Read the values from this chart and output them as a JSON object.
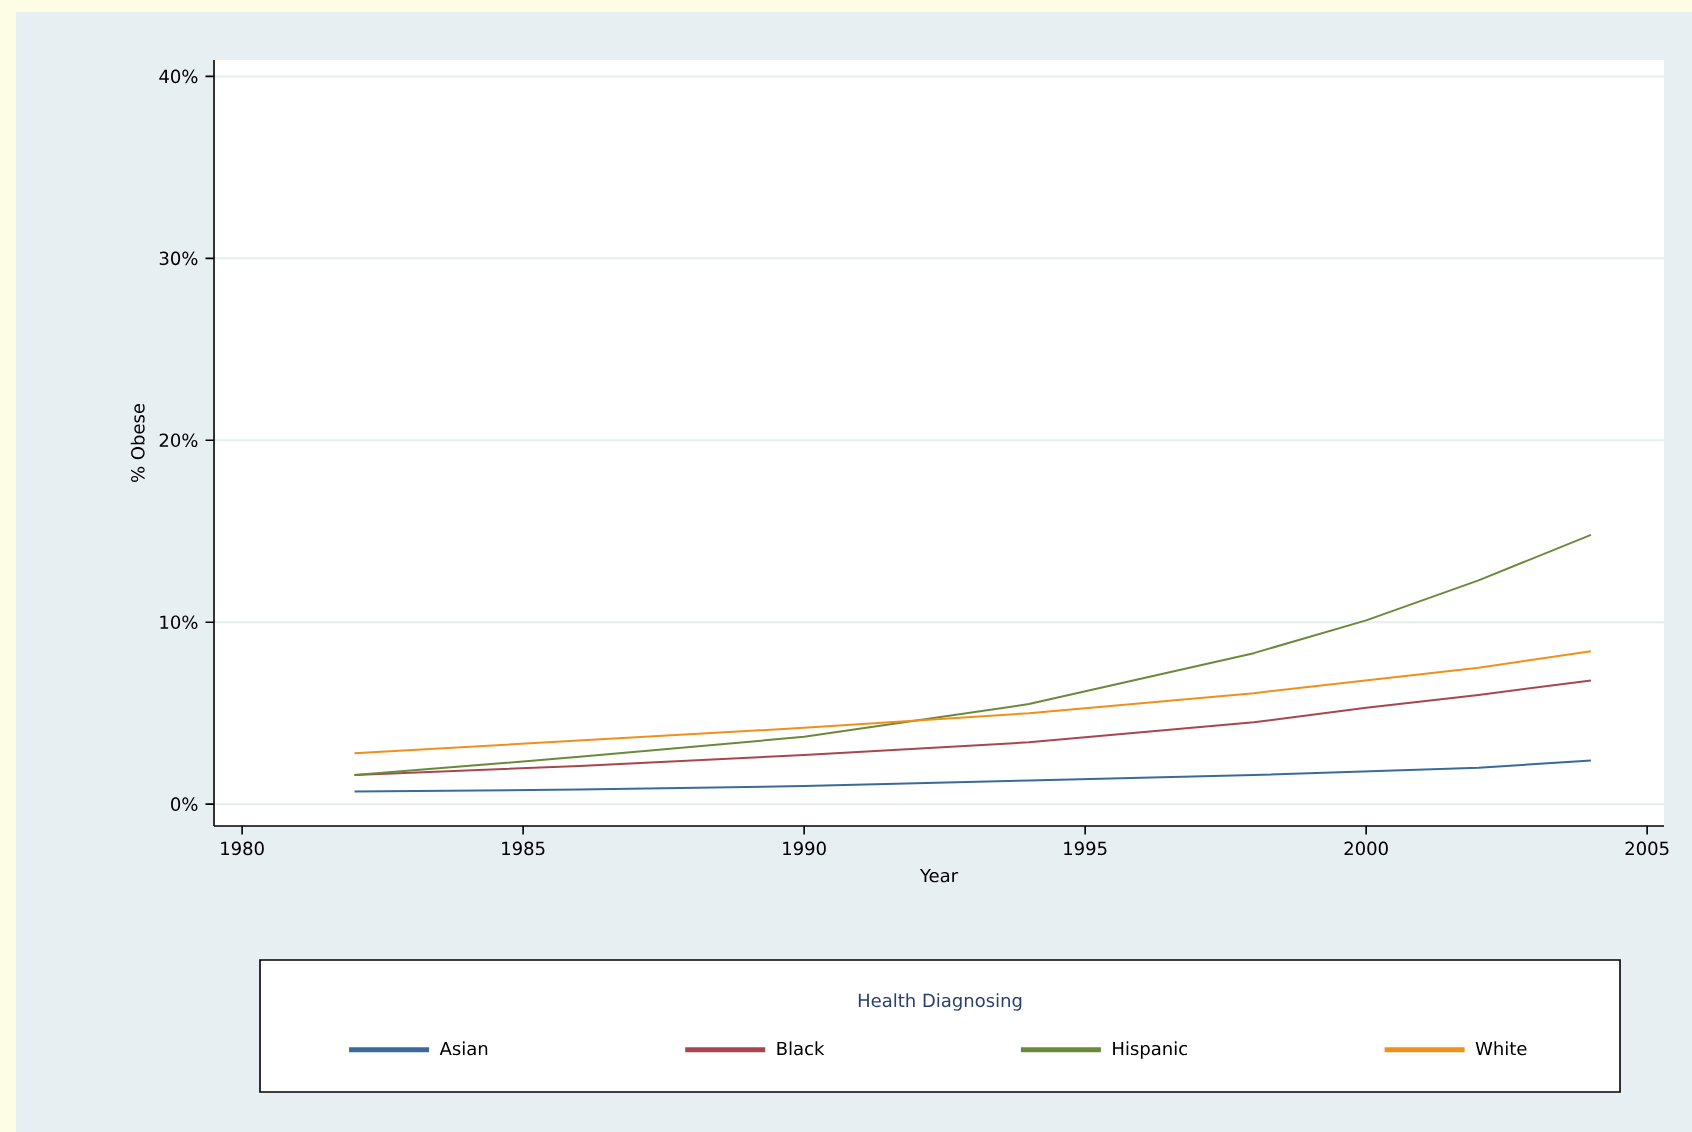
{
  "chart_data": {
    "type": "line",
    "xlabel": "Year",
    "ylabel": "% Obese",
    "legend_title": "Health Diagnosing",
    "series": [
      {
        "name": "Asian",
        "color": "#3a6a9a",
        "x": [
          1982,
          1986,
          1990,
          1994,
          1998,
          2000,
          2002,
          2004
        ],
        "values": [
          0.7,
          0.8,
          1.0,
          1.3,
          1.6,
          1.8,
          2.0,
          2.4
        ]
      },
      {
        "name": "Black",
        "color": "#a8464e",
        "x": [
          1982,
          1986,
          1990,
          1994,
          1998,
          2000,
          2002,
          2004
        ],
        "values": [
          1.6,
          2.1,
          2.7,
          3.4,
          4.5,
          5.3,
          6.0,
          6.8
        ]
      },
      {
        "name": "Hispanic",
        "color": "#6a8a3a",
        "x": [
          1982,
          1986,
          1990,
          1994,
          1998,
          2000,
          2002,
          2004
        ],
        "values": [
          1.6,
          2.6,
          3.7,
          5.5,
          8.3,
          10.1,
          12.3,
          14.8
        ]
      },
      {
        "name": "White",
        "color": "#f0901a",
        "x": [
          1982,
          1986,
          1990,
          1994,
          1998,
          2000,
          2002,
          2004
        ],
        "values": [
          2.8,
          3.5,
          4.2,
          5.0,
          6.1,
          6.8,
          7.5,
          8.4
        ]
      }
    ],
    "xlim": [
      1979.5,
      2005.3
    ],
    "ylim": [
      -1.2,
      40.9
    ],
    "xticks": [
      1980,
      1985,
      1990,
      1995,
      2000,
      2005
    ],
    "yticks": [
      {
        "value": 0,
        "label": "0%"
      },
      {
        "value": 10,
        "label": "10%"
      },
      {
        "value": 20,
        "label": "20%"
      },
      {
        "value": 30,
        "label": "30%"
      },
      {
        "value": 40,
        "label": "40%"
      }
    ],
    "grid": "y",
    "legend": "bottom",
    "line_style": "solid",
    "marker": "none"
  }
}
